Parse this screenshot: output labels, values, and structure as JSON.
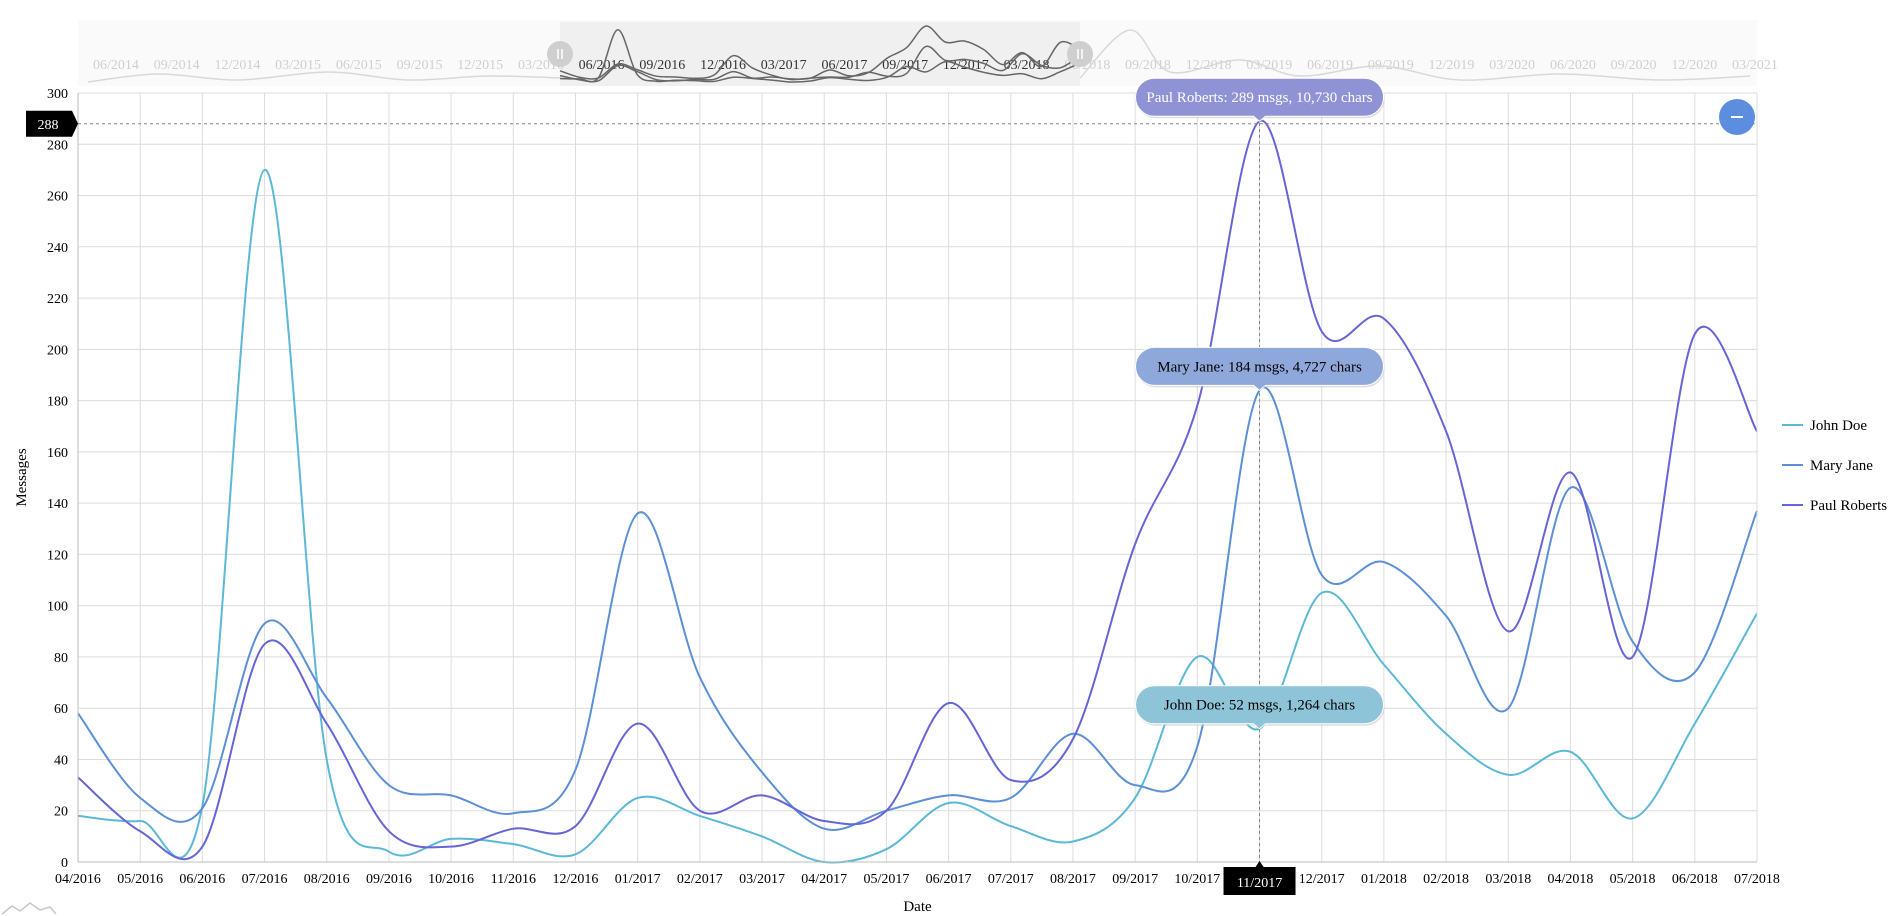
{
  "chart_data": {
    "type": "line",
    "title": "",
    "xlabel": "Date",
    "ylabel": "Messages",
    "ylim": [
      0,
      300
    ],
    "yticks": [
      0,
      20,
      40,
      60,
      80,
      100,
      120,
      140,
      160,
      180,
      200,
      220,
      240,
      260,
      280,
      300
    ],
    "grid": true,
    "legend_position": "right",
    "categories": [
      "04/2016",
      "05/2016",
      "06/2016",
      "07/2016",
      "08/2016",
      "09/2016",
      "10/2016",
      "11/2016",
      "12/2016",
      "01/2017",
      "02/2017",
      "03/2017",
      "04/2017",
      "05/2017",
      "06/2017",
      "07/2017",
      "08/2017",
      "09/2017",
      "10/2017",
      "11/2017",
      "12/2017",
      "01/2018",
      "02/2018",
      "03/2018",
      "04/2018",
      "05/2018",
      "06/2018",
      "07/2018"
    ],
    "series": [
      {
        "name": "John Doe",
        "color": "#5bb8d6",
        "values": [
          18,
          16,
          22,
          270,
          40,
          4,
          9,
          7,
          3,
          25,
          18,
          10,
          0,
          5,
          23,
          14,
          8,
          25,
          80,
          52,
          105,
          77,
          50,
          34,
          43,
          17,
          54,
          97
        ]
      },
      {
        "name": "Mary Jane",
        "color": "#5b8fd6",
        "values": [
          58,
          25,
          21,
          93,
          64,
          30,
          26,
          19,
          36,
          136,
          72,
          35,
          13,
          20,
          26,
          25,
          50,
          30,
          45,
          184,
          112,
          117,
          96,
          60,
          146,
          86,
          74,
          137
        ]
      },
      {
        "name": "Paul Roberts",
        "color": "#6665d6",
        "values": [
          33,
          12,
          6,
          85,
          54,
          12,
          6,
          13,
          14,
          54,
          20,
          26,
          16,
          20,
          62,
          32,
          48,
          124,
          178,
          289,
          207,
          212,
          168,
          90,
          152,
          80,
          206,
          168
        ]
      }
    ],
    "crosshair": {
      "category": "11/2017",
      "y_label": "288"
    },
    "tooltips": [
      {
        "series": "Paul Roberts",
        "text": "Paul Roberts: 289 msgs, 10,730 chars",
        "fill": "#8f93d6",
        "text_color": "#ffffff"
      },
      {
        "series": "Mary Jane",
        "text": "Mary Jane: 184 msgs, 4,727 chars",
        "fill": "#8fa8dc",
        "text_color": "#000000"
      },
      {
        "series": "John Doe",
        "text": "John Doe: 52 msgs, 1,264 chars",
        "fill": "#8ec4d8",
        "text_color": "#000000"
      }
    ],
    "navigator": {
      "labels": [
        "06/2014",
        "09/2014",
        "12/2014",
        "03/2015",
        "06/2015",
        "09/2015",
        "12/2015",
        "03/2016",
        "06/2016",
        "09/2016",
        "12/2016",
        "03/2017",
        "06/2017",
        "09/2017",
        "12/2017",
        "03/2018",
        "06/2018",
        "09/2018",
        "12/2018",
        "03/2019",
        "06/2019",
        "09/2019",
        "12/2019",
        "03/2020",
        "06/2020",
        "09/2020",
        "12/2020",
        "03/2021"
      ],
      "selected_start": "04/2016",
      "selected_end": "07/2018"
    },
    "zoom_out_icon": "minus-icon"
  }
}
